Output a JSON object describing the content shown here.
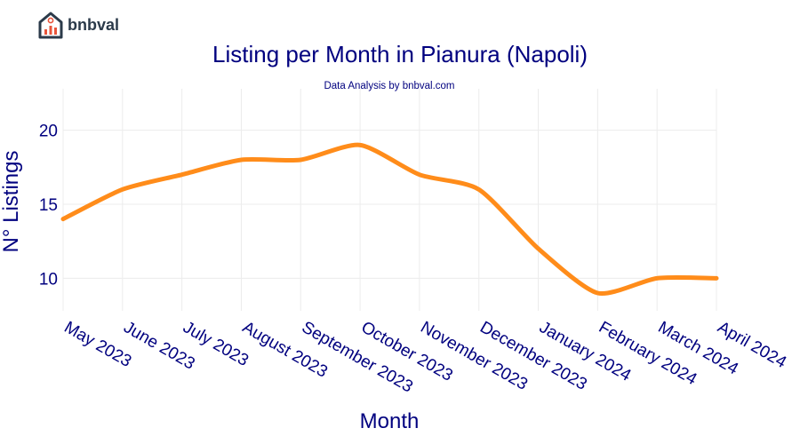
{
  "brand": {
    "name": "bnbval"
  },
  "chart_data": {
    "type": "line",
    "title": "Listing per Month in Pianura (Napoli)",
    "subtitle": "Data Analysis by bnbval.com",
    "xlabel": "Month",
    "ylabel": "N° Listings",
    "categories": [
      "May 2023",
      "June 2023",
      "July 2023",
      "August 2023",
      "September 2023",
      "October 2023",
      "November 2023",
      "December 2023",
      "January 2024",
      "February 2024",
      "March 2024",
      "April 2024"
    ],
    "series": [
      {
        "name": "Listings",
        "values": [
          14,
          16,
          17,
          18,
          18,
          19,
          17,
          16,
          12,
          9,
          10,
          10
        ]
      }
    ],
    "yticks": [
      10,
      15,
      20
    ],
    "ylim": [
      7.8,
      22.8
    ],
    "grid": true,
    "line_color": "#ff8c1a",
    "text_color": "#00007f"
  }
}
